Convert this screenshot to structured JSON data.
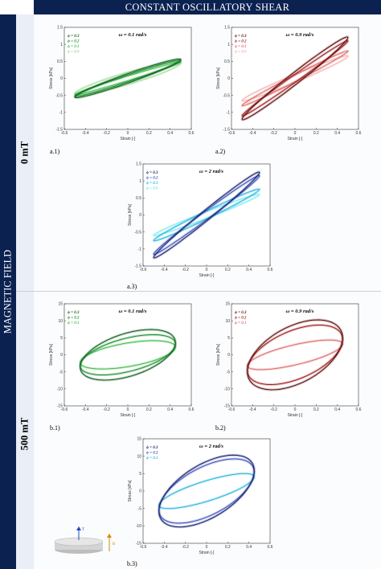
{
  "header": {
    "title": "CONSTANT OSCILLATORY SHEAR"
  },
  "sidebar": {
    "title": "MAGNETIC FIELD"
  },
  "bands": [
    {
      "label": "0 mT"
    },
    {
      "label": "500 mT"
    }
  ],
  "diagram": {
    "t_label": "T",
    "b_label": "B"
  },
  "panels": [
    {
      "id": "a1",
      "label": "a.1)",
      "title": "ω = 0.1 rad/s",
      "xlabel": "Strain [-]",
      "ylabel": "Stress [kPa]",
      "xticks": [
        "-0.6",
        "-0.4",
        "-0.2",
        "0",
        "0.2",
        "0.4",
        "0.6"
      ],
      "yticks": [
        "1.5",
        "1",
        "0.5",
        "0",
        "-0.5",
        "-1",
        "-1.5"
      ],
      "legend": [
        {
          "text": "ϕ = 0.3",
          "color": "#0f5e1f"
        },
        {
          "text": "ϕ = 0.2",
          "color": "#1d8f2e"
        },
        {
          "text": "ϕ = 0.1",
          "color": "#3fbf4a"
        },
        {
          "text": "ϕ = 0.0",
          "color": "#9fe09a"
        }
      ]
    },
    {
      "id": "a2",
      "label": "a.2)",
      "title": "ω = 0.9 rad/s",
      "xlabel": "Strain [-]",
      "ylabel": "Stress [kPa]",
      "xticks": [
        "-0.6",
        "-0.4",
        "-0.2",
        "0",
        "0.2",
        "0.4",
        "0.6"
      ],
      "yticks": [
        "1.5",
        "1",
        "0.5",
        "0",
        "-0.5",
        "-1",
        "-1.5"
      ],
      "legend": [
        {
          "text": "ϕ = 0.3",
          "color": "#5c0a0a"
        },
        {
          "text": "ϕ = 0.2",
          "color": "#a51c1c"
        },
        {
          "text": "ϕ = 0.1",
          "color": "#e06a6a"
        },
        {
          "text": "ϕ = 0.0",
          "color": "#f3b3b3"
        }
      ]
    },
    {
      "id": "a3",
      "label": "a.3)",
      "title": "ω = 2 rad/s",
      "xlabel": "Strain [-]",
      "ylabel": "Stress [kPa]",
      "xticks": [
        "-0.6",
        "-0.4",
        "-0.2",
        "0",
        "0.2",
        "0.4",
        "0.6"
      ],
      "yticks": [
        "1.5",
        "1",
        "0.5",
        "0",
        "-0.5",
        "-1",
        "-1.5"
      ],
      "legend": [
        {
          "text": "ϕ = 0.3",
          "color": "#14206b"
        },
        {
          "text": "ϕ = 0.2",
          "color": "#3b50c0"
        },
        {
          "text": "ϕ = 0.1",
          "color": "#28b6e0"
        },
        {
          "text": "ϕ = 0.0",
          "color": "#7eeaf0"
        }
      ]
    },
    {
      "id": "b1",
      "label": "b.1)",
      "title": "ω = 0.1 rad/s",
      "xlabel": "Strain [-]",
      "ylabel": "Stress [kPa]",
      "xticks": [
        "-0.6",
        "-0.4",
        "-0.2",
        "0",
        "0.2",
        "0.4",
        "0.6"
      ],
      "yticks": [
        "15",
        "10",
        "5",
        "0",
        "-5",
        "-10",
        "-15"
      ],
      "legend": [
        {
          "text": "ϕ = 0.3",
          "color": "#0f5e1f"
        },
        {
          "text": "ϕ = 0.2",
          "color": "#1d8f2e"
        },
        {
          "text": "ϕ = 0.1",
          "color": "#3fbf4a"
        }
      ]
    },
    {
      "id": "b2",
      "label": "b.2)",
      "title": "ω = 0.9 rad/s",
      "xlabel": "Strain [-]",
      "ylabel": "Stress [kPa]",
      "xticks": [
        "-0.6",
        "-0.4",
        "-0.2",
        "0",
        "0.2",
        "0.4",
        "0.6"
      ],
      "yticks": [
        "15",
        "10",
        "5",
        "0",
        "-5",
        "-10",
        "-15"
      ],
      "legend": [
        {
          "text": "ϕ = 0.3",
          "color": "#5c0a0a"
        },
        {
          "text": "ϕ = 0.2",
          "color": "#a51c1c"
        },
        {
          "text": "ϕ = 0.1",
          "color": "#e06a6a"
        }
      ]
    },
    {
      "id": "b3",
      "label": "b.3)",
      "title": "ω = 2 rad/s",
      "xlabel": "Strain [-]",
      "ylabel": "Stress [kPa]",
      "xticks": [
        "-0.6",
        "-0.4",
        "-0.2",
        "0",
        "0.2",
        "0.4",
        "0.6"
      ],
      "yticks": [
        "15",
        "10",
        "5",
        "0",
        "-5",
        "-10",
        "-15"
      ],
      "legend": [
        {
          "text": "ϕ = 0.3",
          "color": "#14206b"
        },
        {
          "text": "ϕ = 0.2",
          "color": "#3b50c0"
        },
        {
          "text": "ϕ = 0.1",
          "color": "#28b6e0"
        }
      ]
    }
  ],
  "chart_data": [
    {
      "type": "line",
      "panel": "a1",
      "xlim": [
        -0.6,
        0.6
      ],
      "ylim": [
        -1.5,
        1.5
      ],
      "series": [
        {
          "name": "ϕ = 0.3",
          "amp": 0.5,
          "slope": 1.1,
          "open": 0.14,
          "color": "#0f5e1f"
        },
        {
          "name": "ϕ = 0.2",
          "amp": 0.5,
          "slope": 1.05,
          "open": 0.1,
          "color": "#1d8f2e"
        },
        {
          "name": "ϕ = 0.1",
          "amp": 0.5,
          "slope": 0.95,
          "open": 0.07,
          "color": "#3fbf4a"
        },
        {
          "name": "ϕ = 0.0",
          "amp": 0.5,
          "slope": 0.9,
          "open": 0.18,
          "color": "#9fe09a"
        }
      ]
    },
    {
      "type": "line",
      "panel": "a2",
      "xlim": [
        -0.6,
        0.6
      ],
      "ylim": [
        -1.5,
        1.5
      ],
      "series": [
        {
          "name": "ϕ = 0.3",
          "amp": 0.5,
          "slope": 2.4,
          "open": 0.2,
          "color": "#5c0a0a"
        },
        {
          "name": "ϕ = 0.2",
          "amp": 0.5,
          "slope": 2.2,
          "open": 0.12,
          "color": "#a51c1c"
        },
        {
          "name": "ϕ = 0.1",
          "amp": 0.5,
          "slope": 1.6,
          "open": 0.1,
          "color": "#e06a6a"
        },
        {
          "name": "ϕ = 0.0",
          "amp": 0.5,
          "slope": 1.3,
          "open": 0.12,
          "color": "#f3b3b3"
        }
      ]
    },
    {
      "type": "line",
      "panel": "a3",
      "xlim": [
        -0.6,
        0.6
      ],
      "ylim": [
        -1.5,
        1.5
      ],
      "series": [
        {
          "name": "ϕ = 0.3",
          "amp": 0.5,
          "slope": 2.5,
          "open": 0.18,
          "color": "#14206b"
        },
        {
          "name": "ϕ = 0.2",
          "amp": 0.5,
          "slope": 2.3,
          "open": 0.14,
          "color": "#3b50c0"
        },
        {
          "name": "ϕ = 0.1",
          "amp": 0.5,
          "slope": 1.5,
          "open": 0.12,
          "color": "#28b6e0"
        },
        {
          "name": "ϕ = 0.0",
          "amp": 0.5,
          "slope": 1.2,
          "open": 0.1,
          "color": "#7eeaf0"
        }
      ]
    },
    {
      "type": "line",
      "panel": "b1",
      "xlim": [
        -0.6,
        0.6
      ],
      "ylim": [
        -15,
        15
      ],
      "series": [
        {
          "name": "ϕ = 0.3",
          "amp": 0.45,
          "slope": 8,
          "open": 6.5,
          "color": "#0f5e1f"
        },
        {
          "name": "ϕ = 0.2",
          "amp": 0.45,
          "slope": 7,
          "open": 5,
          "color": "#1d8f2e"
        },
        {
          "name": "ϕ = 0.1",
          "amp": 0.45,
          "slope": 5,
          "open": 3.5,
          "color": "#3fbf4a"
        }
      ]
    },
    {
      "type": "line",
      "panel": "b2",
      "xlim": [
        -0.6,
        0.6
      ],
      "ylim": [
        -15,
        15
      ],
      "series": [
        {
          "name": "ϕ = 0.3",
          "amp": 0.45,
          "slope": 11,
          "open": 9,
          "color": "#5c0a0a"
        },
        {
          "name": "ϕ = 0.2",
          "amp": 0.45,
          "slope": 10,
          "open": 7.5,
          "color": "#a51c1c"
        },
        {
          "name": "ϕ = 0.1",
          "amp": 0.45,
          "slope": 7,
          "open": 3,
          "color": "#e06a6a"
        }
      ]
    },
    {
      "type": "line",
      "panel": "b3",
      "xlim": [
        -0.6,
        0.6
      ],
      "ylim": [
        -15,
        15
      ],
      "series": [
        {
          "name": "ϕ = 0.3",
          "amp": 0.45,
          "slope": 13,
          "open": 8.5,
          "color": "#14206b"
        },
        {
          "name": "ϕ = 0.2",
          "amp": 0.45,
          "slope": 12,
          "open": 7.5,
          "color": "#3b50c0"
        },
        {
          "name": "ϕ = 0.1",
          "amp": 0.45,
          "slope": 9,
          "open": 3,
          "color": "#28b6e0"
        }
      ]
    }
  ]
}
